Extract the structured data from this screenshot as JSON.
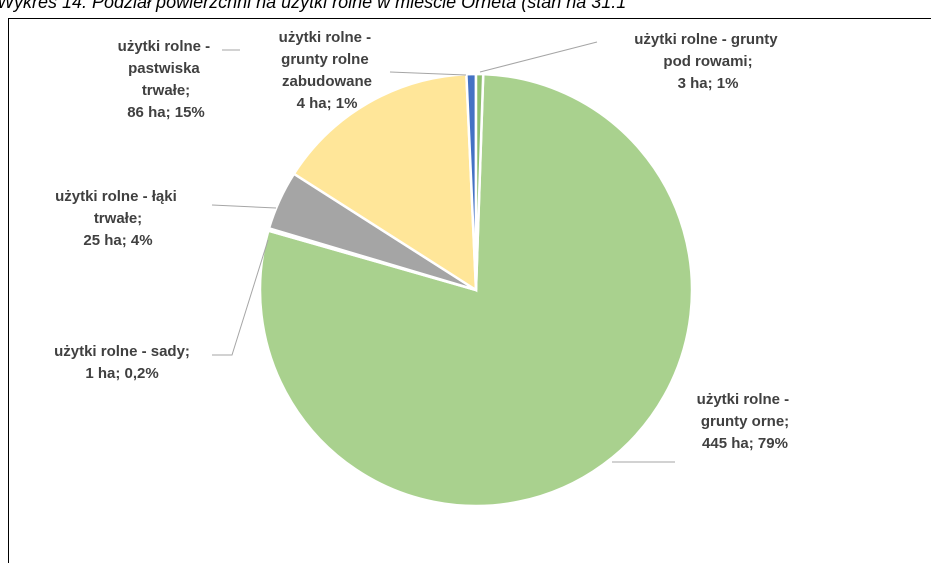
{
  "chart_data": {
    "type": "pie",
    "title": "Wykres 14. Podział powierzchni na użytki rolne w mieście Orneta (stan na 31.1",
    "categories": [
      "użytki rolne - grunty orne;",
      "użytki rolne - sady;",
      "użytki rolne - łąki trwałe;",
      "użytki rolne - pastwiska trwałe;",
      "użytki rolne - grunty rolne zabudowane",
      "użytki rolne - grunty pod rowami;"
    ],
    "values": [
      445,
      1,
      25,
      86,
      4,
      3
    ],
    "value_labels": [
      "445 ha; 79%",
      "1 ha; 0,2%",
      "25 ha; 4%",
      "86 ha; 15%",
      "4 ha; 1%",
      "3 ha; 1%"
    ],
    "colors": [
      "#a9d18e",
      "#ed7d31",
      "#a5a5a5",
      "#ffe699",
      "#4472c4",
      "#8fbf6f"
    ]
  }
}
